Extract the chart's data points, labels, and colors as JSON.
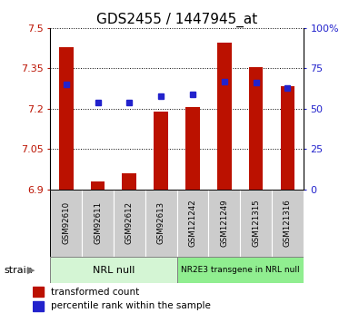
{
  "title": "GDS2455 / 1447945_at",
  "samples": [
    "GSM92610",
    "GSM92611",
    "GSM92612",
    "GSM92613",
    "GSM121242",
    "GSM121249",
    "GSM121315",
    "GSM121316"
  ],
  "red_values": [
    7.43,
    6.93,
    6.96,
    7.19,
    7.205,
    7.445,
    7.355,
    7.285
  ],
  "blue_values_pct": [
    65,
    54,
    54,
    58,
    59,
    67,
    66,
    63
  ],
  "ylim_left": [
    6.9,
    7.5
  ],
  "ylim_right": [
    0,
    100
  ],
  "yticks_left": [
    6.9,
    7.05,
    7.2,
    7.35,
    7.5
  ],
  "yticks_right": [
    0,
    25,
    50,
    75,
    100
  ],
  "ytick_labels_left": [
    "6.9",
    "7.05",
    "7.2",
    "7.35",
    "7.5"
  ],
  "ytick_labels_right": [
    "0",
    "25",
    "50",
    "75",
    "100%"
  ],
  "group1_label": "NRL null",
  "group2_label": "NR2E3 transgene in NRL null",
  "group1_indices": [
    0,
    1,
    2,
    3
  ],
  "group2_indices": [
    4,
    5,
    6,
    7
  ],
  "strain_label": "strain",
  "legend_red": "transformed count",
  "legend_blue": "percentile rank within the sample",
  "red_color": "#bb1100",
  "blue_color": "#2222cc",
  "bar_base": 6.9,
  "group1_bg": "#d4f5d4",
  "group2_bg": "#90ee90",
  "sample_bg": "#cccccc",
  "plot_bg": "#ffffff",
  "title_fontsize": 11,
  "tick_fontsize": 8,
  "bar_width": 0.45
}
